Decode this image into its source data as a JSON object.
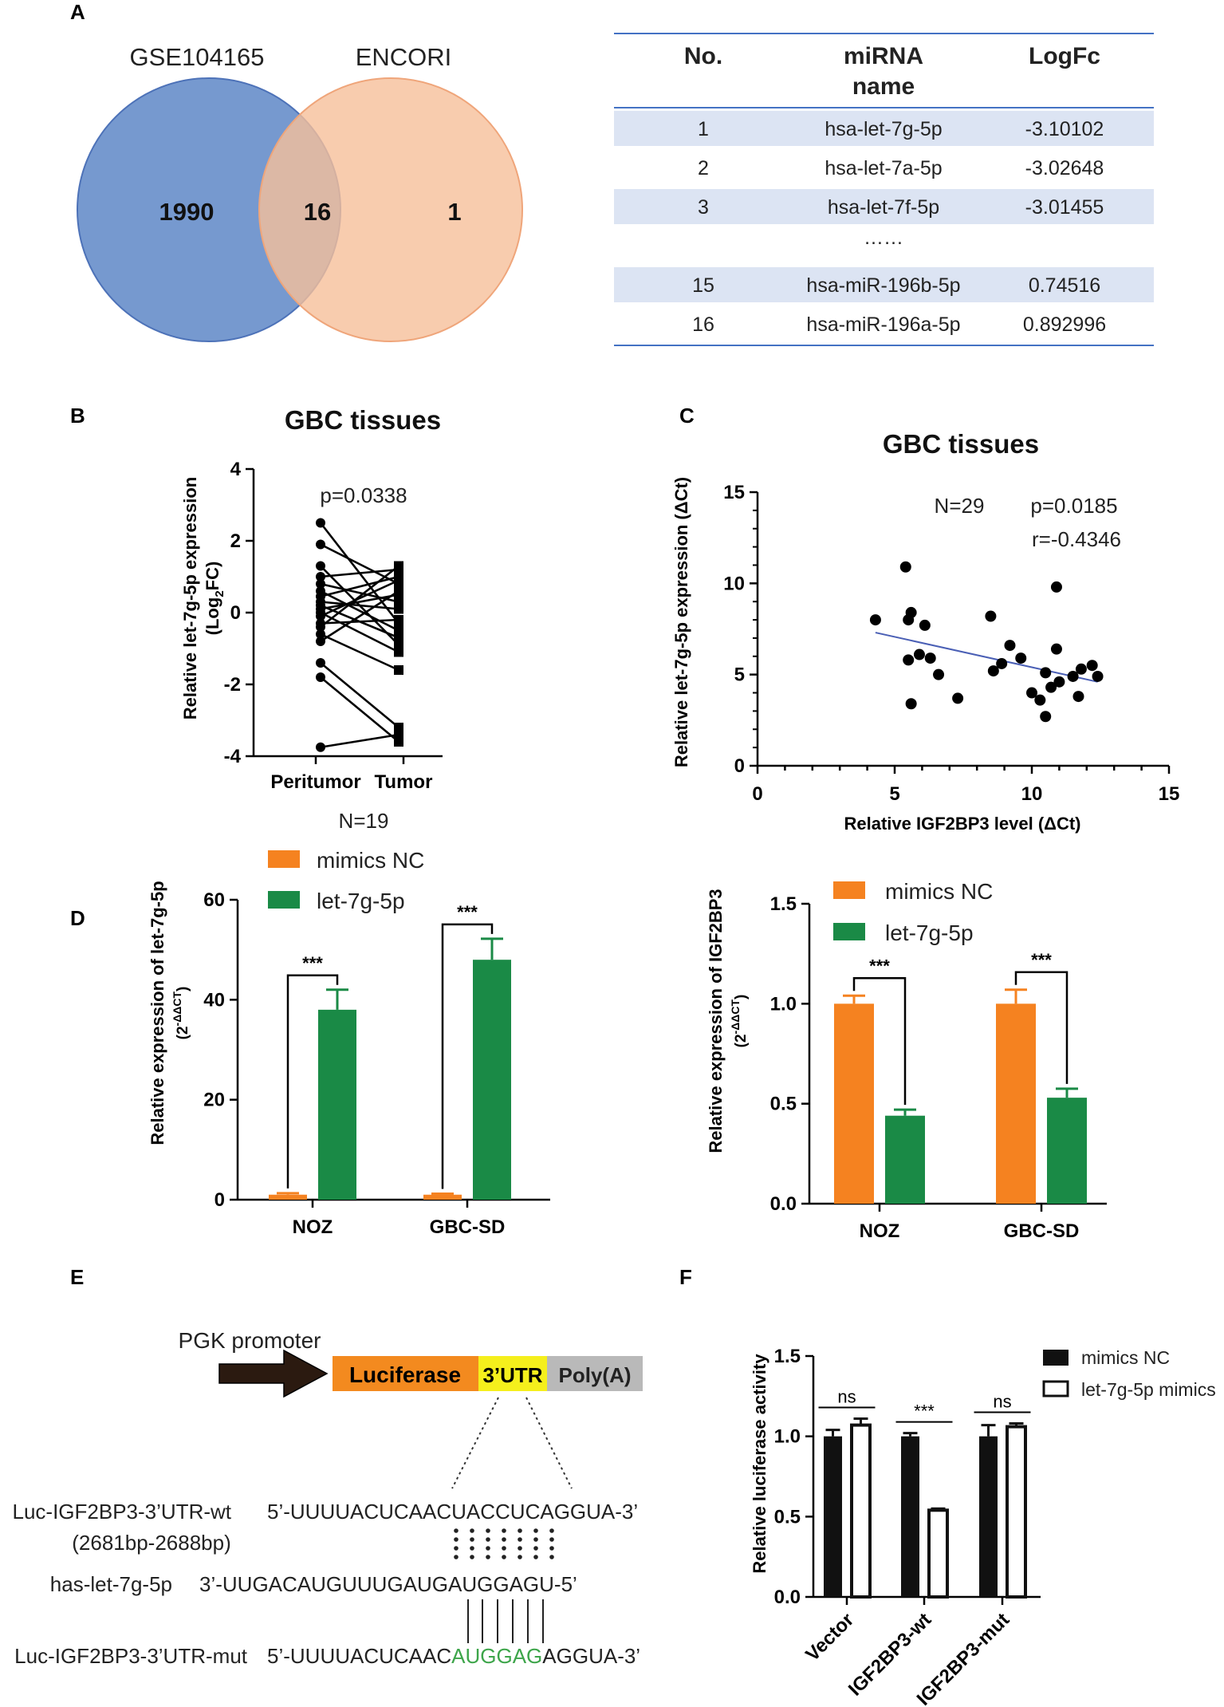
{
  "panel_labels": [
    "A",
    "B",
    "C",
    "D",
    "E",
    "F"
  ],
  "venn": {
    "left_label": "GSE104165",
    "right_label": "ENCORI",
    "left_only": "1990",
    "overlap": "16",
    "right_only": "1",
    "left_color": "#6F93CC",
    "right_color": "#F6BF9A"
  },
  "mirna_table": {
    "headers": [
      "No.",
      "miRNA\nname",
      "LogFc"
    ],
    "rows": [
      {
        "no": "1",
        "name": "hsa-let-7g-5p",
        "logfc": "-3.10102",
        "highlight": true,
        "green": true
      },
      {
        "no": "2",
        "name": "hsa-let-7a-5p",
        "logfc": "-3.02648",
        "highlight": false,
        "green": false
      },
      {
        "no": "3",
        "name": "hsa-let-7f-5p",
        "logfc": "-3.01455",
        "highlight": true,
        "green": false
      },
      {
        "no": "",
        "name": "……",
        "logfc": "",
        "highlight": false,
        "green": false
      },
      {
        "no": "15",
        "name": "hsa-miR-196b-5p",
        "logfc": "0.74516",
        "highlight": true,
        "green": false
      },
      {
        "no": "16",
        "name": "hsa-miR-196a-5p",
        "logfc": "0.892996",
        "highlight": false,
        "green": false
      }
    ],
    "row_fill": "#DCE4F3",
    "rule_color": "#4472C4",
    "green_text": "#5DAE4B"
  },
  "sequence_construct": {
    "promoter_label": "PGK promoter",
    "luciferase_label": "Luciferase",
    "utr_label": "3’UTR",
    "polya_label": "Poly(A)",
    "luciferase_color": "#F38A1F",
    "utr_color": "#F5EF1C",
    "polya_color": "#B9B9B9",
    "wt_name": "Luc-IGF2BP3-3’UTR-wt",
    "wt_range": "(2681bp-2688bp)",
    "wt_seq": "5’-UUUUACUCAACUACCUCAGGUA-3’",
    "mir_name": "has-let-7g-5p",
    "mir_seq": "3’-UUGACAUGUUUGAUGAUGGAGU-5’",
    "mut_name": "Luc-IGF2BP3-3’UTR-mut",
    "mut_prefix": "5’-UUUUACUCAAC",
    "mut_highlight": "AUGGAG",
    "mut_suffix": "AGGUA-3’",
    "mut_color": "#3DA54A"
  },
  "chart_data": [
    {
      "panel": "B",
      "type": "line",
      "title": "GBC tissues",
      "xlabel": "N=19",
      "ylabel": "Relative let-7g-5p expression (Log2FC)",
      "ylim": [
        -4,
        4
      ],
      "yticks": [
        4,
        2,
        0,
        -2,
        -4
      ],
      "categories": [
        "Peritumor",
        "Tumor"
      ],
      "annotation": "p=0.0338",
      "pairs": [
        [
          2.5,
          -0.3
        ],
        [
          1.9,
          0.8
        ],
        [
          1.3,
          -0.9
        ],
        [
          1.0,
          1.2
        ],
        [
          0.8,
          0.3
        ],
        [
          0.6,
          -0.5
        ],
        [
          0.45,
          1.0
        ],
        [
          0.3,
          0.1
        ],
        [
          0.2,
          -0.7
        ],
        [
          0.1,
          0.5
        ],
        [
          0.0,
          -1.1
        ],
        [
          -0.1,
          0.9
        ],
        [
          -0.3,
          -0.2
        ],
        [
          -0.4,
          1.3
        ],
        [
          -0.6,
          -1.6
        ],
        [
          -0.8,
          0.6
        ],
        [
          -1.4,
          -3.2
        ],
        [
          -1.8,
          -3.6
        ],
        [
          -3.75,
          -3.4
        ]
      ]
    },
    {
      "panel": "C",
      "type": "scatter",
      "title": "GBC tissues",
      "xlabel": "Relative IGF2BP3 level (ΔCt)",
      "ylabel": "Relative let-7g-5p expression (ΔCt)",
      "xlim": [
        0,
        15
      ],
      "ylim": [
        0,
        15
      ],
      "xticks": [
        0,
        5,
        10,
        15
      ],
      "yticks": [
        0,
        5,
        10,
        15
      ],
      "annotations": [
        "N=29",
        "p=0.0185",
        "r=-0.4346"
      ],
      "fit_line": {
        "x": [
          4.3,
          12.4
        ],
        "y": [
          7.3,
          4.6
        ],
        "color": "#4A5FB5"
      },
      "points": [
        [
          4.3,
          8.0
        ],
        [
          5.4,
          10.9
        ],
        [
          5.6,
          8.4
        ],
        [
          5.5,
          8.0
        ],
        [
          5.9,
          6.1
        ],
        [
          6.1,
          7.7
        ],
        [
          5.5,
          5.8
        ],
        [
          6.3,
          5.9
        ],
        [
          6.6,
          5.0
        ],
        [
          5.6,
          3.4
        ],
        [
          7.3,
          3.7
        ],
        [
          8.5,
          8.2
        ],
        [
          8.6,
          5.2
        ],
        [
          8.9,
          5.6
        ],
        [
          9.2,
          6.6
        ],
        [
          9.6,
          5.9
        ],
        [
          10.0,
          4.0
        ],
        [
          10.3,
          3.6
        ],
        [
          10.5,
          5.1
        ],
        [
          10.5,
          2.7
        ],
        [
          10.7,
          4.3
        ],
        [
          10.9,
          9.8
        ],
        [
          10.9,
          6.4
        ],
        [
          11.0,
          4.6
        ],
        [
          11.5,
          4.9
        ],
        [
          11.7,
          3.8
        ],
        [
          11.8,
          5.3
        ],
        [
          12.2,
          5.5
        ],
        [
          12.4,
          4.9
        ]
      ]
    },
    {
      "panel": "D-left",
      "type": "bar",
      "title": "",
      "ylabel": "Relative expression of let-7g-5p (2-ΔΔCT)",
      "ylim": [
        0,
        60
      ],
      "yticks": [
        0,
        20,
        40,
        60
      ],
      "categories": [
        "NOZ",
        "GBC-SD"
      ],
      "series": [
        {
          "name": "mimics NC",
          "values": [
            1.0,
            1.0
          ],
          "errors": [
            0.3,
            0.2
          ],
          "color": "#F58220"
        },
        {
          "name": "let-7g-5p",
          "values": [
            38,
            48
          ],
          "errors": [
            4.0,
            4.2
          ],
          "color": "#1A8A46"
        }
      ],
      "significance": [
        "***",
        "***"
      ]
    },
    {
      "panel": "D-right",
      "type": "bar",
      "title": "",
      "ylabel": "Relative expression of IGF2BP3 (2-ΔΔCT)",
      "ylim": [
        0,
        1.5
      ],
      "yticks": [
        "0.0",
        "0.5",
        "1.0",
        "1.5"
      ],
      "categories": [
        "NOZ",
        "GBC-SD"
      ],
      "series": [
        {
          "name": "mimics NC",
          "values": [
            1.0,
            1.0
          ],
          "errors": [
            0.04,
            0.07
          ],
          "color": "#F58220"
        },
        {
          "name": "let-7g-5p",
          "values": [
            0.44,
            0.53
          ],
          "errors": [
            0.03,
            0.045
          ],
          "color": "#1A8A46"
        }
      ],
      "significance": [
        "***",
        "***"
      ]
    },
    {
      "panel": "F",
      "type": "bar",
      "title": "",
      "ylabel": "Relative luciferase activity",
      "ylim": [
        0,
        1.5
      ],
      "yticks": [
        "0.0",
        "0.5",
        "1.0",
        "1.5"
      ],
      "categories": [
        "Vector",
        "IGF2BP3-wt",
        "IGF2BP3-mut"
      ],
      "series": [
        {
          "name": "mimics NC",
          "values": [
            1.0,
            1.0,
            1.0
          ],
          "errors": [
            0.04,
            0.02,
            0.07
          ],
          "color": "#111111"
        },
        {
          "name": "let-7g-5p mimics",
          "values": [
            1.07,
            0.54,
            1.06
          ],
          "errors": [
            0.04,
            0.01,
            0.02
          ],
          "color": "#ffffff"
        }
      ],
      "significance": [
        "ns",
        "***",
        "ns"
      ]
    }
  ]
}
